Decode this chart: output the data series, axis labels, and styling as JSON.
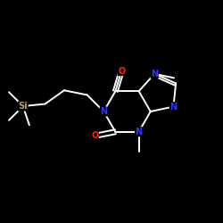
{
  "background": "#000000",
  "bond_color": "#ffffff",
  "atom_colors": {
    "N": "#3333ff",
    "O": "#ff2200",
    "Si": "#b8a060",
    "C": "#ffffff"
  },
  "bond_width": 1.4,
  "font_size_atom": 7.0,
  "figsize": [
    2.5,
    2.5
  ],
  "dpi": 100
}
